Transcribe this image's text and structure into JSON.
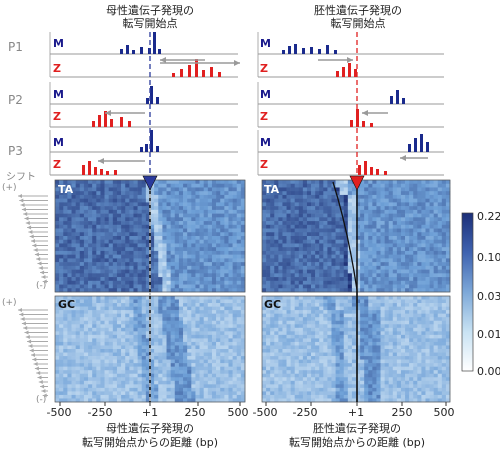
{
  "titles": {
    "maternal": "母性遺伝子発現の\n転写開始点",
    "embryonic": "胚性遺伝子発現の\n転写開始点"
  },
  "promoter_labels": [
    "P1",
    "P2",
    "P3"
  ],
  "track_tags": {
    "m": "M",
    "z": "Z"
  },
  "heatmap_tags": {
    "ta": "TA",
    "gc": "GC"
  },
  "shift": {
    "label": "シフト",
    "plus": "(+)",
    "minus": "(-)"
  },
  "x_axis": {
    "ticks": [
      "-500",
      "-250",
      "+1",
      "250",
      "500"
    ],
    "title": "母性遺伝子発現の\n転写開始点からの距離 (bp)",
    "title_right": "胚性遺伝子発現の\n転写開始点からの距離 (bp)"
  },
  "colorbar": {
    "ticks": [
      "0.22",
      "0.10",
      "0.03",
      "0.01",
      "0.00"
    ]
  },
  "colors": {
    "maternal": "#1a2a8c",
    "zygotic": "#e02020",
    "marker_left": "#2a3a9c",
    "marker_right": "#e02020"
  }
}
